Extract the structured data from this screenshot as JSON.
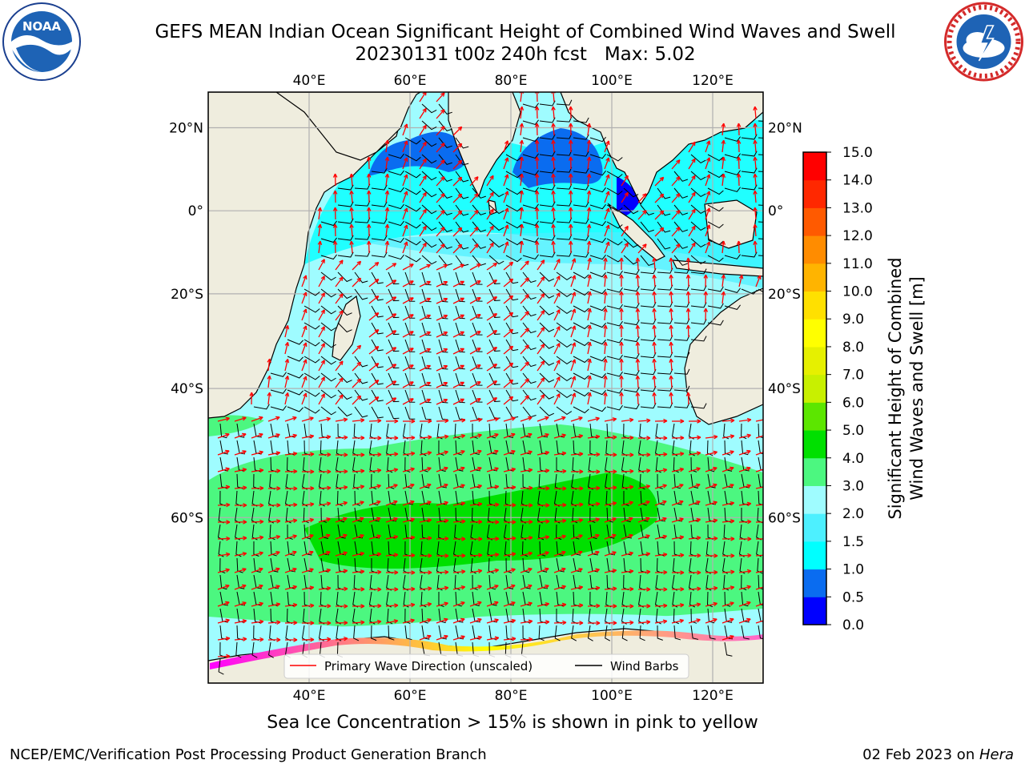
{
  "title": {
    "line1": "GEFS MEAN Indian Ocean Significant Height of Combined Wind Waves and Swell",
    "line2": "20230131 t00z 240h fcst   Max: 5.02"
  },
  "logos": {
    "left": {
      "icon": "noaa-logo-icon",
      "text": "NOAA"
    },
    "right": {
      "icon": "nws-logo-icon"
    }
  },
  "map": {
    "lon_ticks": [
      "40°E",
      "60°E",
      "80°E",
      "100°E",
      "120°E"
    ],
    "lat_ticks_left": [
      "20°N",
      "0°",
      "20°S",
      "40°S",
      "60°S"
    ],
    "lat_ticks_right": [
      "20°N",
      "0°",
      "20°S",
      "40°S",
      "60°S"
    ],
    "lon_values": [
      40,
      60,
      80,
      100,
      120
    ],
    "lat_values": [
      20,
      0,
      -20,
      -40,
      -60
    ],
    "lon_range": [
      20,
      130
    ],
    "lat_range": [
      -75,
      28
    ],
    "grid": true,
    "colors": {
      "land": "#efedde",
      "arrow": "#ff0000",
      "barb": "#000000"
    },
    "legend": {
      "placement": "bottom-center",
      "entries": [
        {
          "label": "Primary Wave Direction (unscaled)",
          "color": "#ff0000"
        },
        {
          "label": "Wind Barbs",
          "color": "#000000"
        }
      ]
    }
  },
  "colorbar": {
    "label_line1": "Significant Height of Combined",
    "label_line2": "Wind Waves and Swell [m]",
    "ticks": [
      "0.0",
      "0.5",
      "1.0",
      "1.5",
      "2.0",
      "3.0",
      "4.0",
      "5.0",
      "6.0",
      "7.0",
      "8.0",
      "9.0",
      "10.0",
      "11.0",
      "12.0",
      "13.0",
      "14.0",
      "15.0"
    ],
    "colors": [
      "#0000ff",
      "#0a6cf0",
      "#00ffff",
      "#4df0ff",
      "#9ffcff",
      "#4cf780",
      "#00e000",
      "#5ce600",
      "#c8f000",
      "#e6f000",
      "#ffff00",
      "#ffe000",
      "#ffb400",
      "#ff8c00",
      "#ff5a00",
      "#ff2800",
      "#ff0000"
    ]
  },
  "footer": {
    "note": "Sea Ice Concentration > 15% is shown in pink to yellow",
    "left": "NCEP/EMC/Verification Post Processing Product Generation Branch",
    "right_prefix": "02 Feb 2023 on ",
    "right_host": "Hera"
  }
}
